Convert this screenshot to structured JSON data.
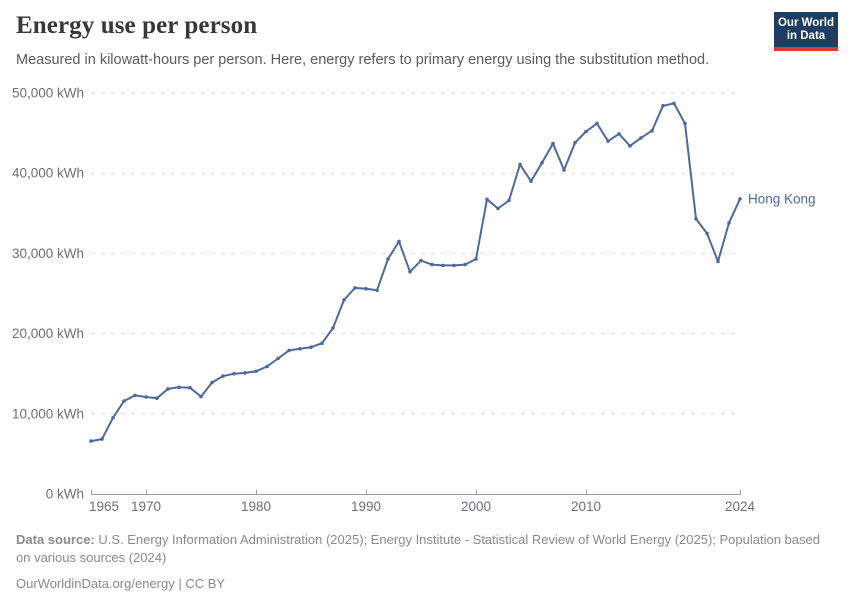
{
  "header": {
    "title": "Energy use per person",
    "subtitle": "Measured in kilowatt-hours per person. Here, energy refers to primary energy using the substitution method.",
    "logo": {
      "line1": "Our World",
      "line2": "in Data"
    }
  },
  "chart_data": {
    "type": "line",
    "title": "Energy use per person",
    "unit": "kWh",
    "xlabel": "",
    "ylabel": "kWh",
    "xlim": [
      1965,
      2024
    ],
    "ylim": [
      0,
      50000
    ],
    "grid": "horizontal-dashed",
    "legend_position": "end-of-line-label",
    "xticks": [
      {
        "value": 1965,
        "label": "1965"
      },
      {
        "value": 1970,
        "label": "1970"
      },
      {
        "value": 1980,
        "label": "1980"
      },
      {
        "value": 1990,
        "label": "1990"
      },
      {
        "value": 2000,
        "label": "2000"
      },
      {
        "value": 2010,
        "label": "2010"
      },
      {
        "value": 2024,
        "label": "2024"
      }
    ],
    "yticks": [
      {
        "value": 0,
        "label": "0 kWh"
      },
      {
        "value": 10000,
        "label": "10,000 kWh"
      },
      {
        "value": 20000,
        "label": "20,000 kWh"
      },
      {
        "value": 30000,
        "label": "30,000 kWh"
      },
      {
        "value": 40000,
        "label": "40,000 kWh"
      },
      {
        "value": 50000,
        "label": "50,000 kWh"
      }
    ],
    "series": [
      {
        "name": "Hong Kong",
        "color": "#4C6A9C",
        "x": [
          1965,
          1966,
          1967,
          1968,
          1969,
          1970,
          1971,
          1972,
          1973,
          1974,
          1975,
          1976,
          1977,
          1978,
          1979,
          1980,
          1981,
          1982,
          1983,
          1984,
          1985,
          1986,
          1987,
          1988,
          1989,
          1990,
          1991,
          1992,
          1993,
          1994,
          1995,
          1996,
          1997,
          1998,
          1999,
          2000,
          2001,
          2002,
          2003,
          2004,
          2005,
          2006,
          2007,
          2008,
          2009,
          2010,
          2011,
          2012,
          2013,
          2014,
          2015,
          2016,
          2017,
          2018,
          2019,
          2020,
          2021,
          2022,
          2023,
          2024
        ],
        "values": [
          6600,
          6850,
          9500,
          11600,
          12300,
          12100,
          11950,
          13100,
          13300,
          13250,
          12150,
          13900,
          14700,
          15000,
          15100,
          15300,
          15900,
          16900,
          17900,
          18100,
          18300,
          18800,
          20700,
          24200,
          25700,
          25600,
          25400,
          29300,
          31500,
          27700,
          29100,
          28600,
          28500,
          28500,
          28600,
          29300,
          36750,
          35600,
          36600,
          41100,
          39000,
          41300,
          43700,
          40400,
          43800,
          45200,
          46200,
          44000,
          44900,
          43400,
          44400,
          45300,
          48400,
          48700,
          46200,
          34300,
          32500,
          29000,
          33800,
          36800
        ]
      }
    ]
  },
  "footer": {
    "source_label": "Data source:",
    "source_text": " U.S. Energy Information Administration (2025); Energy Institute - Statistical Review of World Energy (2025); Population based on various sources (2024)",
    "link_text": "OurWorldinData.org/energy | CC BY"
  },
  "colors": {
    "line": "#4C6A9C",
    "grid": "#d9d9d9",
    "axis": "#9e9e9e",
    "tick_text": "#6e7079",
    "title": "#383838",
    "subtitle": "#5b5b5b",
    "footer": "#8a8a8a",
    "logo_background": "#1d3d63",
    "logo_underline": "#e0392e"
  }
}
